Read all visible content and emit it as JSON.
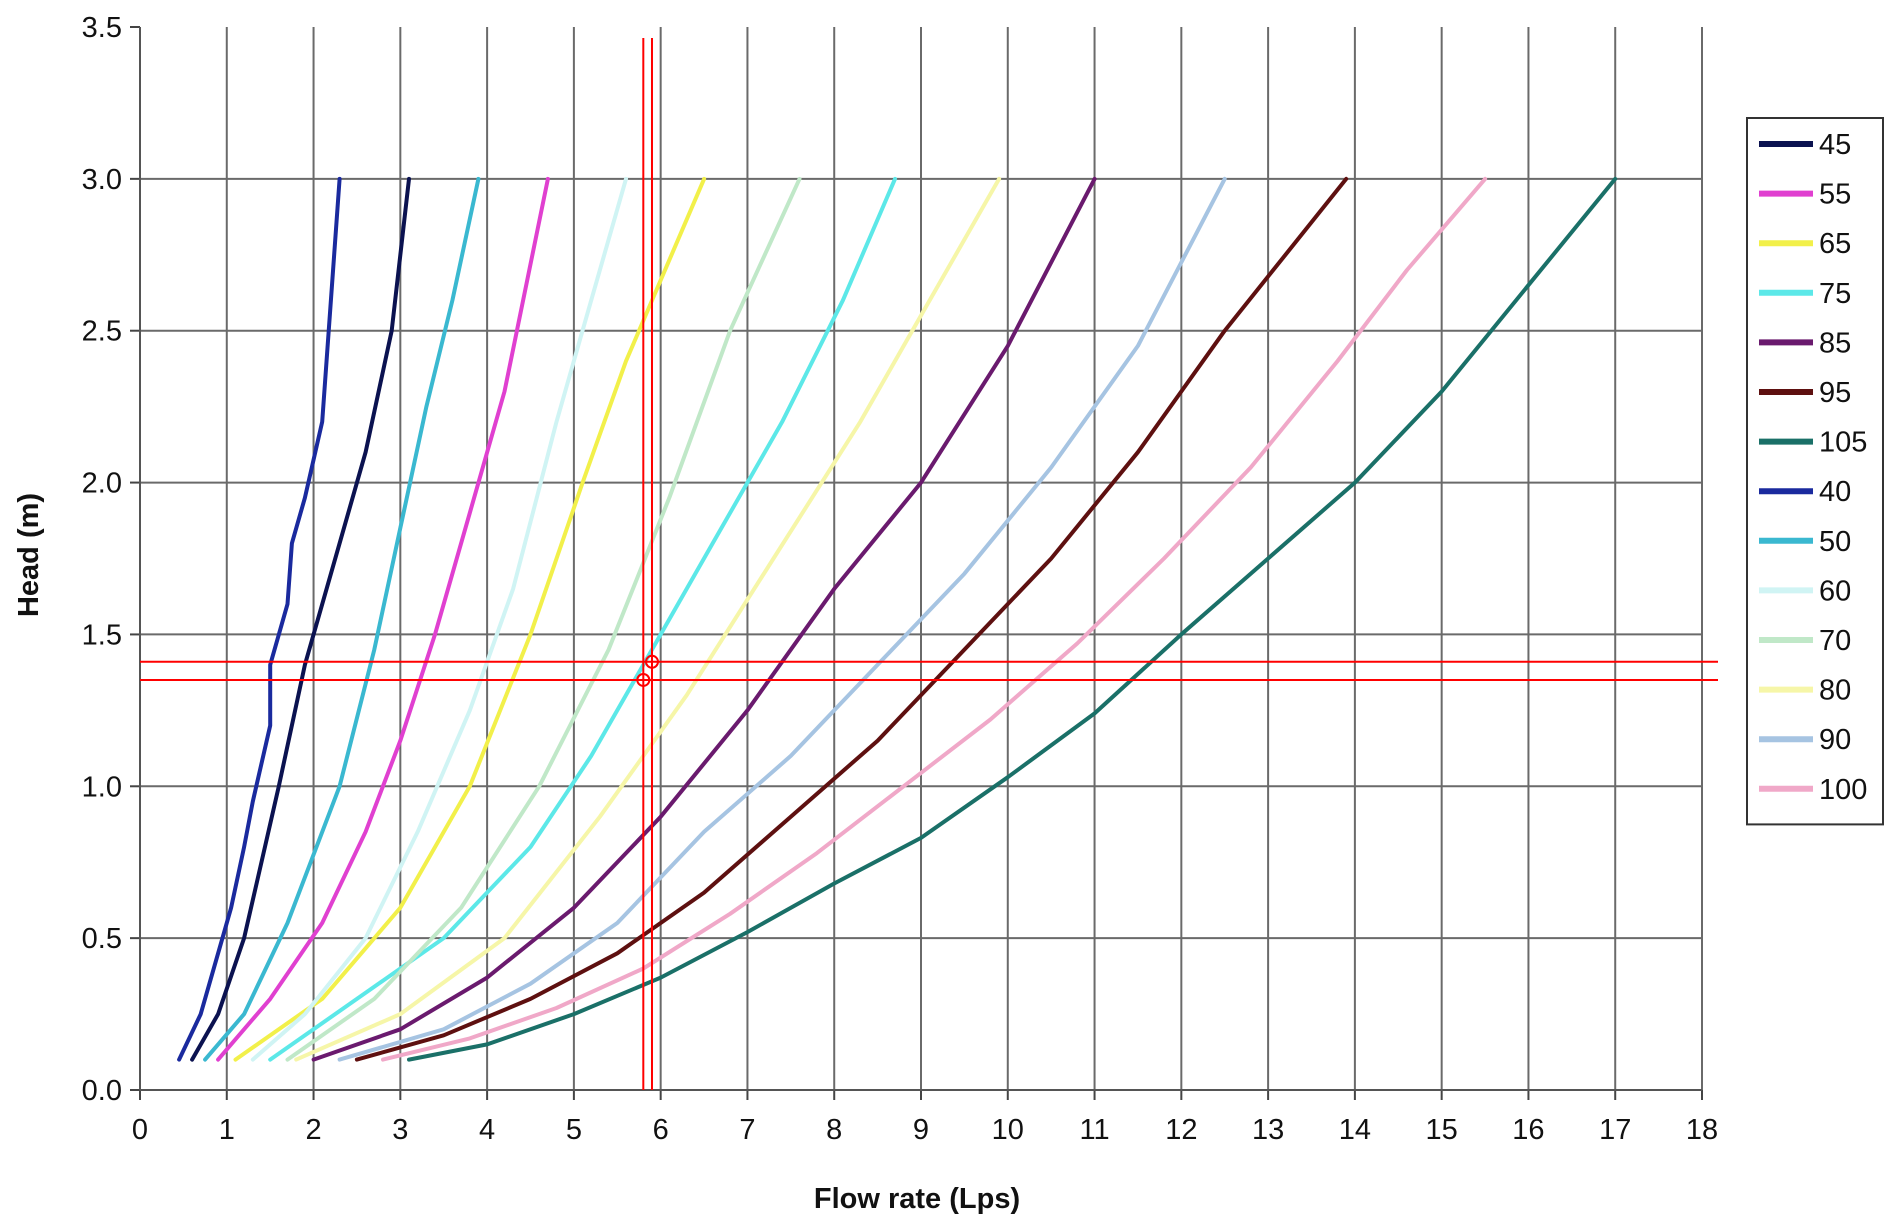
{
  "chart_data": {
    "type": "line",
    "xlabel": "Flow rate (Lps)",
    "ylabel": "Head (m)",
    "xlim": [
      0,
      18
    ],
    "ylim": [
      0,
      3.5
    ],
    "x_ticks": [
      "0",
      "1",
      "2",
      "3",
      "4",
      "5",
      "6",
      "7",
      "8",
      "9",
      "10",
      "11",
      "12",
      "13",
      "14",
      "15",
      "16",
      "17",
      "18"
    ],
    "y_ticks": [
      "0.0",
      "0.5",
      "1.0",
      "1.5",
      "2.0",
      "2.5",
      "3.0",
      "3.5"
    ],
    "grid": true,
    "legend_position": "right",
    "series": [
      {
        "name": "45",
        "color": "#0b1250",
        "points": [
          [
            0.6,
            0.1
          ],
          [
            0.9,
            0.25
          ],
          [
            1.2,
            0.5
          ],
          [
            1.6,
            1.0
          ],
          [
            1.9,
            1.4
          ],
          [
            2.3,
            1.8
          ],
          [
            2.6,
            2.1
          ],
          [
            2.9,
            2.5
          ],
          [
            3.1,
            3.0
          ]
        ]
      },
      {
        "name": "55",
        "color": "#e040d0",
        "points": [
          [
            0.9,
            0.1
          ],
          [
            1.5,
            0.3
          ],
          [
            2.1,
            0.55
          ],
          [
            2.6,
            0.85
          ],
          [
            3.0,
            1.15
          ],
          [
            3.4,
            1.5
          ],
          [
            3.8,
            1.9
          ],
          [
            4.2,
            2.3
          ],
          [
            4.7,
            3.0
          ]
        ]
      },
      {
        "name": "65",
        "color": "#f2f04a",
        "points": [
          [
            1.1,
            0.1
          ],
          [
            2.1,
            0.3
          ],
          [
            3.0,
            0.6
          ],
          [
            3.8,
            1.0
          ],
          [
            4.5,
            1.5
          ],
          [
            5.1,
            2.0
          ],
          [
            5.6,
            2.4
          ],
          [
            6.5,
            3.0
          ]
        ]
      },
      {
        "name": "75",
        "color": "#5ce8e8",
        "points": [
          [
            1.5,
            0.1
          ],
          [
            2.5,
            0.3
          ],
          [
            3.5,
            0.5
          ],
          [
            4.5,
            0.8
          ],
          [
            5.2,
            1.1
          ],
          [
            5.9,
            1.45
          ],
          [
            6.6,
            1.8
          ],
          [
            7.4,
            2.2
          ],
          [
            8.1,
            2.6
          ],
          [
            8.7,
            3.0
          ]
        ]
      },
      {
        "name": "85",
        "color": "#6a1a6e",
        "points": [
          [
            2.0,
            0.1
          ],
          [
            3.0,
            0.2
          ],
          [
            4.0,
            0.37
          ],
          [
            5.0,
            0.6
          ],
          [
            6.0,
            0.9
          ],
          [
            7.0,
            1.25
          ],
          [
            8.0,
            1.65
          ],
          [
            9.0,
            2.0
          ],
          [
            10.0,
            2.45
          ],
          [
            11.0,
            3.0
          ]
        ]
      },
      {
        "name": "95",
        "color": "#5e1010",
        "points": [
          [
            2.5,
            0.1
          ],
          [
            3.5,
            0.18
          ],
          [
            4.5,
            0.3
          ],
          [
            5.5,
            0.45
          ],
          [
            6.5,
            0.65
          ],
          [
            7.5,
            0.9
          ],
          [
            8.5,
            1.15
          ],
          [
            9.5,
            1.45
          ],
          [
            10.5,
            1.75
          ],
          [
            11.5,
            2.1
          ],
          [
            12.5,
            2.5
          ],
          [
            13.9,
            3.0
          ]
        ]
      },
      {
        "name": "105",
        "color": "#1a7068",
        "points": [
          [
            3.1,
            0.1
          ],
          [
            4.0,
            0.15
          ],
          [
            5.0,
            0.25
          ],
          [
            6.0,
            0.37
          ],
          [
            7.0,
            0.52
          ],
          [
            8.0,
            0.68
          ],
          [
            9.0,
            0.83
          ],
          [
            10.0,
            1.03
          ],
          [
            11.0,
            1.24
          ],
          [
            12.0,
            1.5
          ],
          [
            13.0,
            1.75
          ],
          [
            14.0,
            2.0
          ],
          [
            15.0,
            2.3
          ],
          [
            16.0,
            2.65
          ],
          [
            17.0,
            3.0
          ]
        ]
      },
      {
        "name": "40",
        "color": "#1a2a9e",
        "points": [
          [
            0.45,
            0.1
          ],
          [
            0.7,
            0.25
          ],
          [
            0.9,
            0.45
          ],
          [
            1.05,
            0.6
          ],
          [
            1.2,
            0.8
          ],
          [
            1.3,
            0.95
          ],
          [
            1.5,
            1.2
          ],
          [
            1.5,
            1.4
          ],
          [
            1.7,
            1.6
          ],
          [
            1.75,
            1.8
          ],
          [
            1.9,
            1.95
          ],
          [
            2.1,
            2.2
          ],
          [
            2.2,
            2.6
          ],
          [
            2.3,
            3.0
          ]
        ]
      },
      {
        "name": "50",
        "color": "#3ab8d0",
        "points": [
          [
            0.75,
            0.1
          ],
          [
            1.2,
            0.25
          ],
          [
            1.7,
            0.55
          ],
          [
            2.3,
            1.0
          ],
          [
            2.7,
            1.45
          ],
          [
            3.0,
            1.85
          ],
          [
            3.3,
            2.25
          ],
          [
            3.6,
            2.6
          ],
          [
            3.9,
            3.0
          ]
        ]
      },
      {
        "name": "60",
        "color": "#d0f4f4",
        "points": [
          [
            1.3,
            0.1
          ],
          [
            1.9,
            0.25
          ],
          [
            2.6,
            0.5
          ],
          [
            3.2,
            0.85
          ],
          [
            3.8,
            1.25
          ],
          [
            4.3,
            1.65
          ],
          [
            4.8,
            2.2
          ],
          [
            5.2,
            2.6
          ],
          [
            5.6,
            3.0
          ]
        ]
      },
      {
        "name": "70",
        "color": "#c0e8c8",
        "points": [
          [
            1.7,
            0.1
          ],
          [
            2.7,
            0.3
          ],
          [
            3.7,
            0.6
          ],
          [
            4.6,
            1.0
          ],
          [
            5.4,
            1.45
          ],
          [
            6.1,
            1.95
          ],
          [
            6.8,
            2.5
          ],
          [
            7.6,
            3.0
          ]
        ]
      },
      {
        "name": "80",
        "color": "#f6f6a8",
        "points": [
          [
            1.8,
            0.1
          ],
          [
            3.0,
            0.25
          ],
          [
            4.2,
            0.5
          ],
          [
            5.3,
            0.9
          ],
          [
            6.3,
            1.3
          ],
          [
            7.3,
            1.75
          ],
          [
            8.3,
            2.2
          ],
          [
            9.1,
            2.6
          ],
          [
            9.9,
            3.0
          ]
        ]
      },
      {
        "name": "90",
        "color": "#a6c4e2",
        "points": [
          [
            2.3,
            0.1
          ],
          [
            3.5,
            0.2
          ],
          [
            4.5,
            0.35
          ],
          [
            5.5,
            0.55
          ],
          [
            6.5,
            0.85
          ],
          [
            7.5,
            1.1
          ],
          [
            8.5,
            1.4
          ],
          [
            9.5,
            1.7
          ],
          [
            10.5,
            2.05
          ],
          [
            11.5,
            2.45
          ],
          [
            12.5,
            3.0
          ]
        ]
      },
      {
        "name": "100",
        "color": "#f0a8c8",
        "points": [
          [
            2.8,
            0.1
          ],
          [
            3.8,
            0.17
          ],
          [
            4.8,
            0.27
          ],
          [
            5.8,
            0.4
          ],
          [
            6.8,
            0.58
          ],
          [
            7.8,
            0.78
          ],
          [
            8.8,
            1.0
          ],
          [
            9.8,
            1.22
          ],
          [
            10.8,
            1.47
          ],
          [
            11.8,
            1.75
          ],
          [
            12.8,
            2.05
          ],
          [
            13.8,
            2.4
          ],
          [
            14.6,
            2.7
          ],
          [
            15.5,
            3.0
          ]
        ]
      }
    ],
    "reference_lines": {
      "color": "#ff0000",
      "vertical_x": [
        5.8,
        5.9
      ],
      "horizontal_y": [
        1.35,
        1.41
      ],
      "markers": [
        [
          5.8,
          1.35
        ],
        [
          5.9,
          1.41
        ]
      ]
    }
  }
}
